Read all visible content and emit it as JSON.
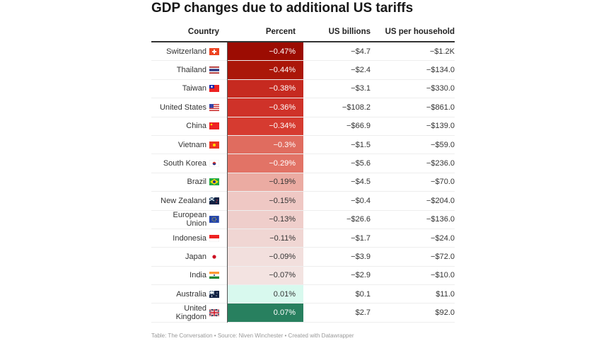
{
  "chart_data": {
    "type": "table",
    "title": "GDP changes due to additional US tariffs",
    "columns": [
      "Country",
      "Percent",
      "US billions",
      "US per household"
    ],
    "rows": [
      {
        "country": "Switzerland",
        "flag": "CH",
        "percent": -0.47,
        "percent_label": "−0.47%",
        "billions": "−$4.7",
        "household": "−$1.2K",
        "color": "#9c0c02",
        "text_color": "#ffffff"
      },
      {
        "country": "Thailand",
        "flag": "TH",
        "percent": -0.44,
        "percent_label": "−0.44%",
        "billions": "−$2.4",
        "household": "−$134.0",
        "color": "#ab1709",
        "text_color": "#ffffff"
      },
      {
        "country": "Taiwan",
        "flag": "TW",
        "percent": -0.38,
        "percent_label": "−0.38%",
        "billions": "−$3.1",
        "household": "−$330.0",
        "color": "#c62a20",
        "text_color": "#ffffff"
      },
      {
        "country": "United States",
        "flag": "US",
        "percent": -0.36,
        "percent_label": "−0.36%",
        "billions": "−$108.2",
        "household": "−$861.0",
        "color": "#cf3229",
        "text_color": "#ffffff"
      },
      {
        "country": "China",
        "flag": "CN",
        "percent": -0.34,
        "percent_label": "−0.34%",
        "billions": "−$66.9",
        "household": "−$139.0",
        "color": "#d63b30",
        "text_color": "#ffffff"
      },
      {
        "country": "Vietnam",
        "flag": "VN",
        "percent": -0.3,
        "percent_label": "−0.3%",
        "billions": "−$1.5",
        "household": "−$59.0",
        "color": "#e06c5f",
        "text_color": "#ffffff"
      },
      {
        "country": "South Korea",
        "flag": "KR",
        "percent": -0.29,
        "percent_label": "−0.29%",
        "billions": "−$5.6",
        "household": "−$236.0",
        "color": "#e27366",
        "text_color": "#ffffff"
      },
      {
        "country": "Brazil",
        "flag": "BR",
        "percent": -0.19,
        "percent_label": "−0.19%",
        "billions": "−$4.5",
        "household": "−$70.0",
        "color": "#ebaba2",
        "text_color": "#333333"
      },
      {
        "country": "New Zealand",
        "flag": "NZ",
        "percent": -0.15,
        "percent_label": "−0.15%",
        "billions": "−$0.4",
        "household": "−$204.0",
        "color": "#efc8c4",
        "text_color": "#333333"
      },
      {
        "country": "European Union",
        "flag": "EU",
        "percent": -0.13,
        "percent_label": "−0.13%",
        "billions": "−$26.6",
        "household": "−$136.0",
        "color": "#efcecb",
        "text_color": "#333333"
      },
      {
        "country": "Indonesia",
        "flag": "ID",
        "percent": -0.11,
        "percent_label": "−0.11%",
        "billions": "−$1.7",
        "household": "−$24.0",
        "color": "#f0d6d3",
        "text_color": "#333333"
      },
      {
        "country": "Japan",
        "flag": "JP",
        "percent": -0.09,
        "percent_label": "−0.09%",
        "billions": "−$3.9",
        "household": "−$72.0",
        "color": "#f2dfdd",
        "text_color": "#333333"
      },
      {
        "country": "India",
        "flag": "IN",
        "percent": -0.07,
        "percent_label": "−0.07%",
        "billions": "−$2.9",
        "household": "−$10.0",
        "color": "#f3e3e1",
        "text_color": "#333333"
      },
      {
        "country": "Australia",
        "flag": "AU",
        "percent": 0.01,
        "percent_label": "0.01%",
        "billions": "$0.1",
        "household": "$11.0",
        "color": "#d8f9ee",
        "text_color": "#333333"
      },
      {
        "country": "United Kingdom",
        "flag": "GB",
        "percent": 0.07,
        "percent_label": "0.07%",
        "billions": "$2.7",
        "household": "$92.0",
        "color": "#28805f",
        "text_color": "#ffffff"
      }
    ]
  },
  "footer": "Table: The Conversation • Source: Niven Winchester • Created with Datawrapper"
}
